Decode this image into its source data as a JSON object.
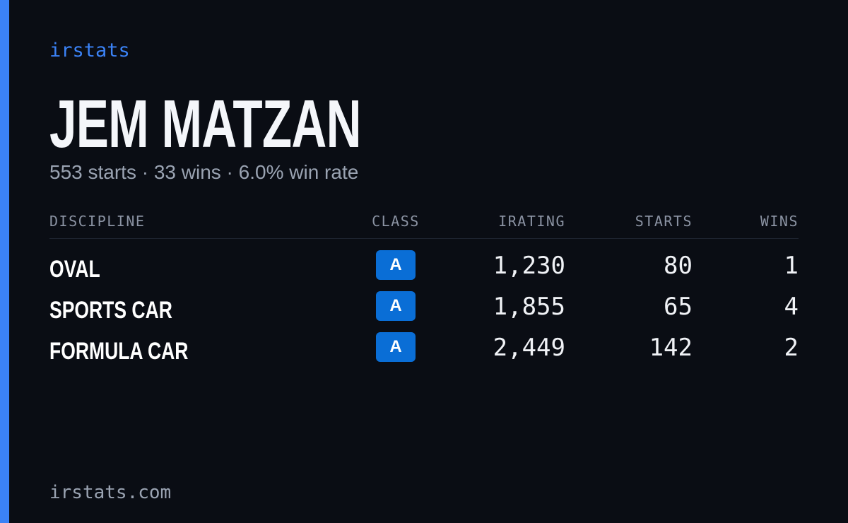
{
  "brand": "irstats",
  "driver": {
    "name": "JEM MATZAN",
    "summary": "553 starts · 33 wins · 6.0% win rate"
  },
  "table": {
    "headers": [
      "DISCIPLINE",
      "CLASS",
      "IRATING",
      "STARTS",
      "WINS"
    ],
    "rows": [
      [
        "OVAL",
        "A",
        "1,230",
        "80",
        "1"
      ],
      [
        "SPORTS CAR",
        "A",
        "1,855",
        "65",
        "4"
      ],
      [
        "FORMULA CAR",
        "A",
        "2,449",
        "142",
        "2"
      ]
    ]
  },
  "footer": "irstats.com"
}
